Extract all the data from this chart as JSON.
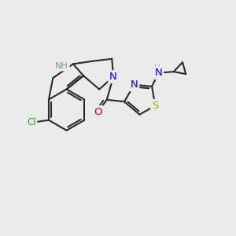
{
  "background_color": "#EBEBEB",
  "bond_color": "#2a2a2a",
  "bond_width": 1.5,
  "atom_colors": {
    "N": "#0000EE",
    "O": "#DD0000",
    "S": "#AAAA00",
    "Cl": "#22AA22",
    "NH_color": "#6699AA",
    "C": "#2a2a2a"
  },
  "figsize": [
    3.0,
    3.0
  ],
  "dpi": 100
}
